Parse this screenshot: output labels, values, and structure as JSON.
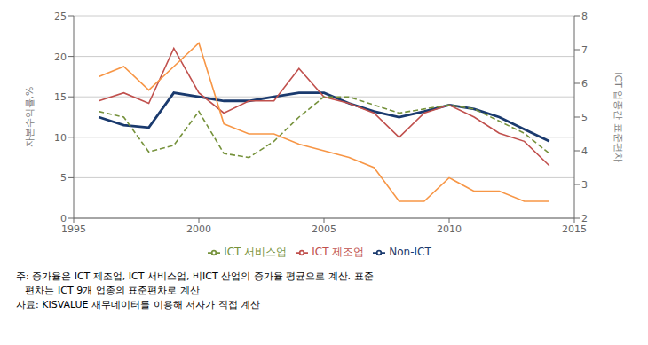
{
  "chart_data": {
    "type": "line",
    "x": [
      1996,
      1997,
      1998,
      1999,
      2000,
      2001,
      2002,
      2003,
      2004,
      2005,
      2006,
      2007,
      2008,
      2009,
      2010,
      2011,
      2012,
      2013,
      2014
    ],
    "series": [
      {
        "name": "Non-ICT",
        "color": "#1a3a6e",
        "line_style": "solid",
        "values": [
          12.5,
          11.5,
          11.2,
          15.5,
          15.0,
          14.5,
          14.5,
          15.0,
          15.5,
          15.5,
          14.2,
          13.2,
          12.5,
          13.2,
          14.0,
          13.5,
          12.5,
          11.0,
          9.5
        ]
      },
      {
        "name": "ICT 제조업",
        "color": "#c0504d",
        "line_style": "solid",
        "values": [
          14.5,
          15.5,
          14.2,
          21.0,
          15.5,
          13.0,
          14.5,
          14.5,
          18.5,
          15.0,
          14.2,
          13.0,
          10.0,
          13.0,
          14.0,
          12.5,
          10.5,
          9.5,
          6.5
        ]
      },
      {
        "name": "ICT 서비스업",
        "color": "#76923c",
        "line_style": "dashed",
        "values": [
          13.2,
          12.5,
          8.2,
          9.0,
          13.2,
          8.0,
          7.5,
          9.5,
          12.5,
          15.0,
          15.0,
          14.0,
          13.0,
          13.5,
          14.0,
          13.5,
          12.0,
          10.5,
          8.0
        ]
      },
      {
        "color": "#f79646",
        "line_style": "solid",
        "axis": "y2",
        "values": [
          6.2,
          6.5,
          5.8,
          6.5,
          7.2,
          4.8,
          4.5,
          4.5,
          4.2,
          4.0,
          3.8,
          3.5,
          2.5,
          2.5,
          3.2,
          2.8,
          2.8,
          2.5,
          2.5
        ]
      }
    ],
    "xlim": [
      1995,
      2015
    ],
    "xticks": [
      1995,
      2000,
      2005,
      2010,
      2015
    ],
    "ylim": [
      0,
      25
    ],
    "yticks": [
      0,
      5,
      10,
      15,
      20,
      25
    ],
    "y2lim": [
      2,
      8
    ],
    "y2ticks": [
      2,
      3,
      4,
      5,
      6,
      7,
      8
    ],
    "ylabel": "자본수익률,%",
    "y2label": "ICT 업종간 표준편차",
    "grid": true,
    "legend": "bottom",
    "annotations": [
      "주: 증가율은 ICT 제조업, ICT 서비스업, 비ICT 산업의 증가율 평균으로 계산. 표준",
      "   편차는 ICT 9개 업종의 표준편차로 계산",
      "자료: KISVALUE 재무데이터를 이용해 저자가 직접 계산"
    ]
  }
}
